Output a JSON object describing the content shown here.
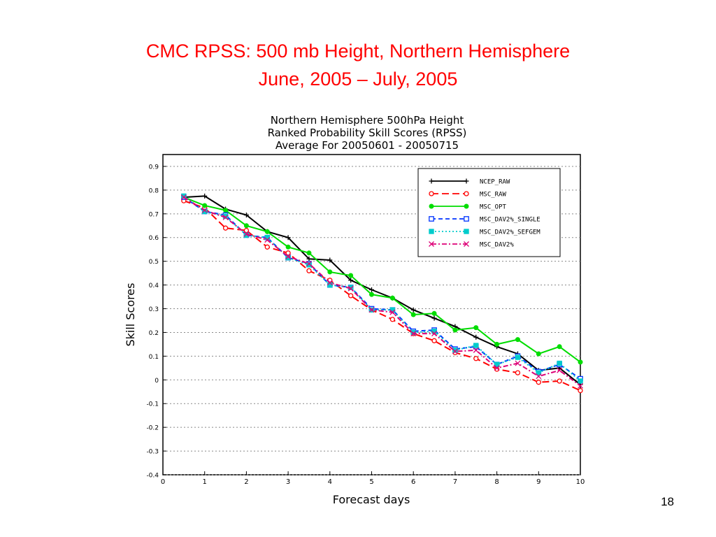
{
  "slide": {
    "title_line1": "CMC RPSS:  500 mb Height, Northern Hemisphere",
    "title_line2": "June, 2005 – July, 2005",
    "page_number": "18"
  },
  "chart_data": {
    "type": "line",
    "title": [
      "Northern Hemisphere 500hPa Height",
      "Ranked Probability Skill Scores (RPSS)",
      "Average For 20050601 - 20050715"
    ],
    "xlabel": "Forecast days",
    "ylabel": "Skill Scores",
    "xlim": [
      0,
      10
    ],
    "ylim": [
      -0.4,
      0.95
    ],
    "xticks": [
      0,
      1,
      2,
      3,
      4,
      5,
      6,
      7,
      8,
      9,
      10
    ],
    "xtick_labels": [
      "0",
      "1",
      "2",
      "3",
      "4",
      "5",
      "6",
      "7",
      "8",
      "9",
      "10"
    ],
    "yticks": [
      -0.4,
      -0.3,
      -0.2,
      -0.1,
      0,
      0.1,
      0.2,
      0.3,
      0.4,
      0.5,
      0.6,
      0.7,
      0.8,
      0.9
    ],
    "ytick_labels": [
      "-0.4",
      "-0.3",
      "-0.2",
      "-0.1",
      "0",
      "0.1",
      "0.2",
      "0.3",
      "0.4",
      "0.5",
      "0.6",
      "0.7",
      "0.8",
      "0.9"
    ],
    "grid": "horizontal dotted",
    "legend_position": "top-right",
    "x": [
      0.5,
      1,
      1.5,
      2,
      2.5,
      3,
      3.5,
      4,
      4.5,
      5,
      5.5,
      6,
      6.5,
      7,
      7.5,
      8,
      8.5,
      9,
      9.5,
      10
    ],
    "series": [
      {
        "name": "NCEP_RAW",
        "color": "#000000",
        "dash": "solid",
        "marker": "plus",
        "values": [
          0.77,
          0.775,
          0.72,
          0.695,
          0.625,
          0.6,
          0.51,
          0.505,
          0.42,
          0.38,
          0.345,
          0.295,
          0.26,
          0.225,
          0.18,
          0.14,
          0.11,
          0.04,
          0.05,
          -0.02
        ]
      },
      {
        "name": "MSC_RAW",
        "color": "#ff0000",
        "dash": "longdash",
        "marker": "circle",
        "values": [
          0.755,
          0.725,
          0.64,
          0.63,
          0.56,
          0.535,
          0.46,
          0.42,
          0.355,
          0.295,
          0.255,
          0.195,
          0.165,
          0.115,
          0.09,
          0.045,
          0.03,
          -0.01,
          -0.005,
          -0.045
        ]
      },
      {
        "name": "MSC_OPT",
        "color": "#00dd00",
        "dash": "solid",
        "marker": "dot",
        "values": [
          0.77,
          0.735,
          0.715,
          0.65,
          0.625,
          0.56,
          0.535,
          0.455,
          0.44,
          0.36,
          0.345,
          0.275,
          0.28,
          0.21,
          0.22,
          0.15,
          0.17,
          0.11,
          0.14,
          0.075
        ]
      },
      {
        "name": "MSC_DAV2%_SINGLE",
        "color": "#0033ff",
        "dash": "dash",
        "marker": "square",
        "values": [
          0.77,
          0.71,
          0.695,
          0.61,
          0.6,
          0.515,
          0.49,
          0.4,
          0.39,
          0.3,
          0.295,
          0.205,
          0.21,
          0.13,
          0.14,
          0.065,
          0.1,
          0.035,
          0.065,
          0.005
        ]
      },
      {
        "name": "MSC_DAV2%_SEFGEM",
        "color": "#00cccc",
        "dash": "dotted",
        "marker": "filled-square",
        "values": [
          0.775,
          0.71,
          0.69,
          0.61,
          0.6,
          0.515,
          0.485,
          0.4,
          0.39,
          0.295,
          0.295,
          0.2,
          0.205,
          0.125,
          0.145,
          0.065,
          0.095,
          0.03,
          0.07,
          -0.005
        ]
      },
      {
        "name": "MSC_DAV2%",
        "color": "#dd0077",
        "dash": "dashdot",
        "marker": "x",
        "values": [
          0.77,
          0.715,
          0.685,
          0.615,
          0.59,
          0.52,
          0.49,
          0.41,
          0.385,
          0.295,
          0.285,
          0.195,
          0.195,
          0.12,
          0.125,
          0.05,
          0.07,
          0.015,
          0.04,
          -0.025
        ]
      }
    ]
  }
}
